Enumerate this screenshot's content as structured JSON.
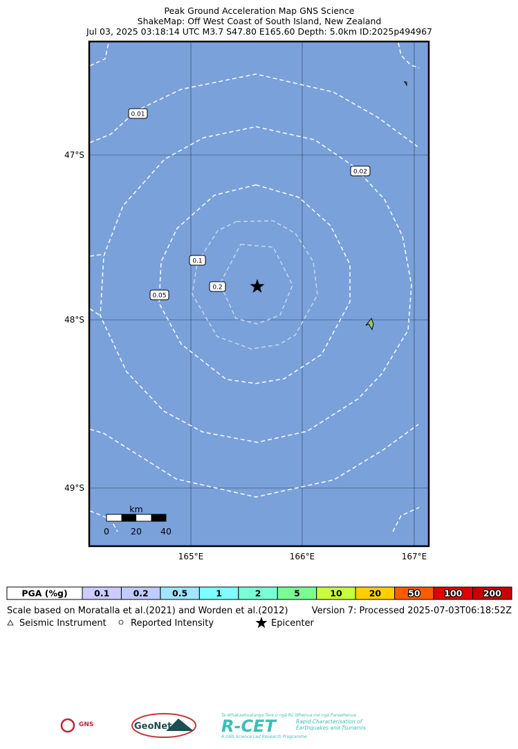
{
  "header": {
    "lines": [
      "Peak Ground Acceleration Map GNS Science",
      "ShakeMap: Off West Coast of South Island, New Zealand",
      "Jul 03, 2025 03:18:14 UTC M3.7 S47.80 E165.60 Depth: 5.0km ID:2025p494967"
    ]
  },
  "map": {
    "lat_labels": [
      "47°S",
      "48°S",
      "49°S"
    ],
    "lon_labels": [
      "165°E",
      "166°E",
      "167°E"
    ],
    "contour_labels": [
      "0.01",
      "0.02",
      "0.05",
      "0.1",
      "0.2"
    ],
    "scale_bar": {
      "unit": "km",
      "ticks": [
        "0",
        "20",
        "40"
      ]
    }
  },
  "pga_scale": {
    "label": "PGA (%g)",
    "levels": [
      {
        "text": "0.1",
        "color": "#ccccff"
      },
      {
        "text": "0.2",
        "color": "#bfccff"
      },
      {
        "text": "0.5",
        "color": "#a0e6ff"
      },
      {
        "text": "1",
        "color": "#80ffff"
      },
      {
        "text": "2",
        "color": "#7affd5"
      },
      {
        "text": "5",
        "color": "#7aff93"
      },
      {
        "text": "10",
        "color": "#c7ff3f"
      },
      {
        "text": "20",
        "color": "#ffcf00"
      },
      {
        "text": "50",
        "color": "#ff5a00"
      },
      {
        "text": "100",
        "color": "#e30000"
      },
      {
        "text": "200",
        "color": "#c80000"
      }
    ]
  },
  "footer": {
    "note": "Scale based on Moratalla et al.(2021) and Worden et al.(2012)",
    "version": "Version 7: Processed 2025-07-03T06:18:52Z",
    "legend": [
      "Seismic Instrument",
      "Reported Intensity",
      "Epicenter"
    ]
  },
  "logos": [
    "GNS",
    "GeoNet",
    "Te Whakaahuatanga Tere o ngā Rū Whenua me ngā Parawhenua",
    "R-CET",
    "Rapid Characterisation of",
    "Earthquakes and Tsunamis",
    "A GNS Science Led Research Programme"
  ]
}
